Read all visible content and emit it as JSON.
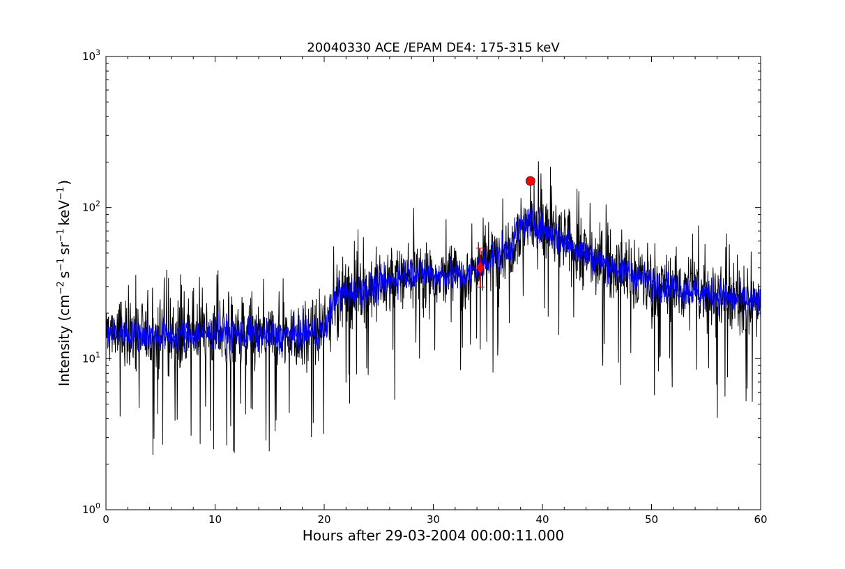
{
  "chart_data": {
    "type": "line",
    "title": "20040330 ACE /EPAM DE4: 175-315 keV",
    "xlabel": "Hours after 29-03-2004 00:00:11.000",
    "ylabel_parts": {
      "prefix": "Intensity (cm",
      "exp1": "−2",
      "mid1": "s",
      "exp2": "−1",
      "mid2": "sr",
      "exp3": "−1",
      "mid3": "keV",
      "exp4": "−1",
      "suffix": ")"
    },
    "xlim": [
      0,
      60
    ],
    "ylim": [
      1,
      1000
    ],
    "yscale": "log",
    "grid": false,
    "x_ticks": [
      0,
      10,
      20,
      30,
      40,
      50,
      60
    ],
    "y_tick_labels": [
      {
        "base": "10",
        "exp": "0",
        "value": 1
      },
      {
        "base": "10",
        "exp": "1",
        "value": 10
      },
      {
        "base": "10",
        "exp": "2",
        "value": 100
      },
      {
        "base": "10",
        "exp": "3",
        "value": 1000
      }
    ],
    "series": [
      {
        "style": "raw",
        "color": "#000000",
        "envelope_points": [
          {
            "x": 0,
            "y": 15
          },
          {
            "x": 5,
            "y": 14
          },
          {
            "x": 10,
            "y": 15
          },
          {
            "x": 15,
            "y": 14
          },
          {
            "x": 20,
            "y": 15
          },
          {
            "x": 21,
            "y": 26
          },
          {
            "x": 25,
            "y": 30
          },
          {
            "x": 28,
            "y": 38
          },
          {
            "x": 30,
            "y": 36
          },
          {
            "x": 33,
            "y": 35
          },
          {
            "x": 35,
            "y": 45
          },
          {
            "x": 37,
            "y": 55
          },
          {
            "x": 38,
            "y": 75
          },
          {
            "x": 39,
            "y": 80
          },
          {
            "x": 42,
            "y": 60
          },
          {
            "x": 45,
            "y": 45
          },
          {
            "x": 50,
            "y": 32
          },
          {
            "x": 55,
            "y": 27
          },
          {
            "x": 60,
            "y": 23
          }
        ]
      },
      {
        "style": "smoothed",
        "color": "#0000ff",
        "envelope_points": [
          {
            "x": 0,
            "y": 15
          },
          {
            "x": 5,
            "y": 14
          },
          {
            "x": 10,
            "y": 15
          },
          {
            "x": 15,
            "y": 14
          },
          {
            "x": 20,
            "y": 15
          },
          {
            "x": 21,
            "y": 26
          },
          {
            "x": 25,
            "y": 30
          },
          {
            "x": 28,
            "y": 38
          },
          {
            "x": 30,
            "y": 36
          },
          {
            "x": 33,
            "y": 35
          },
          {
            "x": 35,
            "y": 45
          },
          {
            "x": 37,
            "y": 55
          },
          {
            "x": 38,
            "y": 75
          },
          {
            "x": 39,
            "y": 80
          },
          {
            "x": 42,
            "y": 60
          },
          {
            "x": 45,
            "y": 45
          },
          {
            "x": 50,
            "y": 32
          },
          {
            "x": 55,
            "y": 27
          },
          {
            "x": 60,
            "y": 23
          }
        ]
      }
    ],
    "markers": [
      {
        "kind": "circle",
        "x": 38.9,
        "y": 150,
        "color": "#ff0000"
      },
      {
        "kind": "diamond",
        "x": 34.3,
        "y": 40,
        "color": "#ff0000"
      }
    ]
  }
}
